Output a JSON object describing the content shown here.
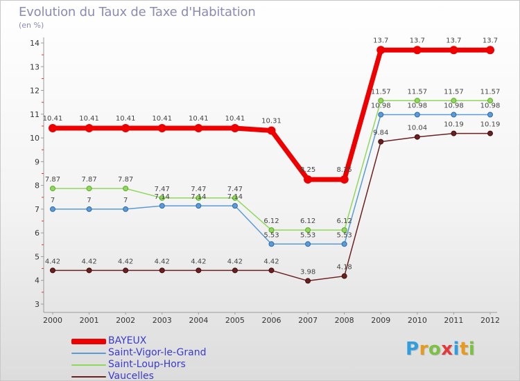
{
  "title": "Evolution du Taux de Taxe d'Habitation",
  "unit": "(en %)",
  "brand": {
    "letters": [
      "P",
      "r",
      "o",
      "x",
      "i",
      "t",
      "i"
    ],
    "colors": [
      "#2f9ee0",
      "#e69a1e",
      "#7cc242",
      "#e23a3a",
      "#2f9ee0",
      "#e69a1e",
      "#7cc242"
    ]
  },
  "chart_data": {
    "type": "line",
    "title": "Evolution du Taux de Taxe d'Habitation",
    "ylabel": "(en %)",
    "xlabel": "",
    "x": [
      "2000",
      "2001",
      "2002",
      "2003",
      "2004",
      "2005",
      "2006",
      "2007",
      "2008",
      "2009",
      "2010",
      "2011",
      "2012"
    ],
    "ylim": [
      3,
      14
    ],
    "yticks": [
      "3",
      "4",
      "5",
      "6",
      "7",
      "8",
      "9",
      "10",
      "11",
      "12",
      "13",
      "14"
    ],
    "grid": false,
    "legend_position": "bottom-left",
    "series": [
      {
        "name": "BAYEUX",
        "color": "#ee0000",
        "values": [
          10.41,
          10.41,
          10.41,
          10.41,
          10.41,
          10.41,
          10.31,
          8.25,
          8.25,
          13.7,
          13.7,
          13.7,
          13.7
        ],
        "labels": [
          "10.41",
          "10.41",
          "10.41",
          "10.41",
          "10.41",
          "10.41",
          "10.31",
          "8.25",
          "8.25",
          "13.7",
          "13.7",
          "13.7",
          "13.7"
        ]
      },
      {
        "name": "Saint-Vigor-le-Grand",
        "color": "#5a9ad6",
        "values": [
          7,
          7,
          7,
          7.14,
          7.14,
          7.14,
          5.53,
          5.53,
          5.53,
          10.98,
          10.98,
          10.98,
          10.98
        ],
        "labels": [
          "7",
          "7",
          "7",
          "7.14",
          "7.14",
          "7.14",
          "5.53",
          "5.53",
          "5.53",
          "10.98",
          "10.98",
          "10.98",
          "10.98"
        ]
      },
      {
        "name": "Saint-Loup-Hors",
        "color": "#8fd85a",
        "values": [
          7.87,
          7.87,
          7.87,
          7.47,
          7.47,
          7.47,
          6.12,
          6.12,
          6.12,
          11.57,
          11.57,
          11.57,
          11.57
        ],
        "labels": [
          "7.87",
          "7.87",
          "7.87",
          "7.47",
          "7.47",
          "7.47",
          "6.12",
          "6.12",
          "6.12",
          "11.57",
          "11.57",
          "11.57",
          "11.57"
        ]
      },
      {
        "name": "Vaucelles",
        "color": "#6b1f1f",
        "values": [
          4.42,
          4.42,
          4.42,
          4.42,
          4.42,
          4.42,
          4.42,
          3.98,
          4.18,
          9.84,
          10.04,
          10.19,
          10.19
        ],
        "labels": [
          "4.42",
          "4.42",
          "4.42",
          "4.42",
          "4.42",
          "4.42",
          "4.42",
          "3.98",
          "4.18",
          "9.84",
          "10.04",
          "10.19",
          "10.19"
        ]
      }
    ]
  }
}
